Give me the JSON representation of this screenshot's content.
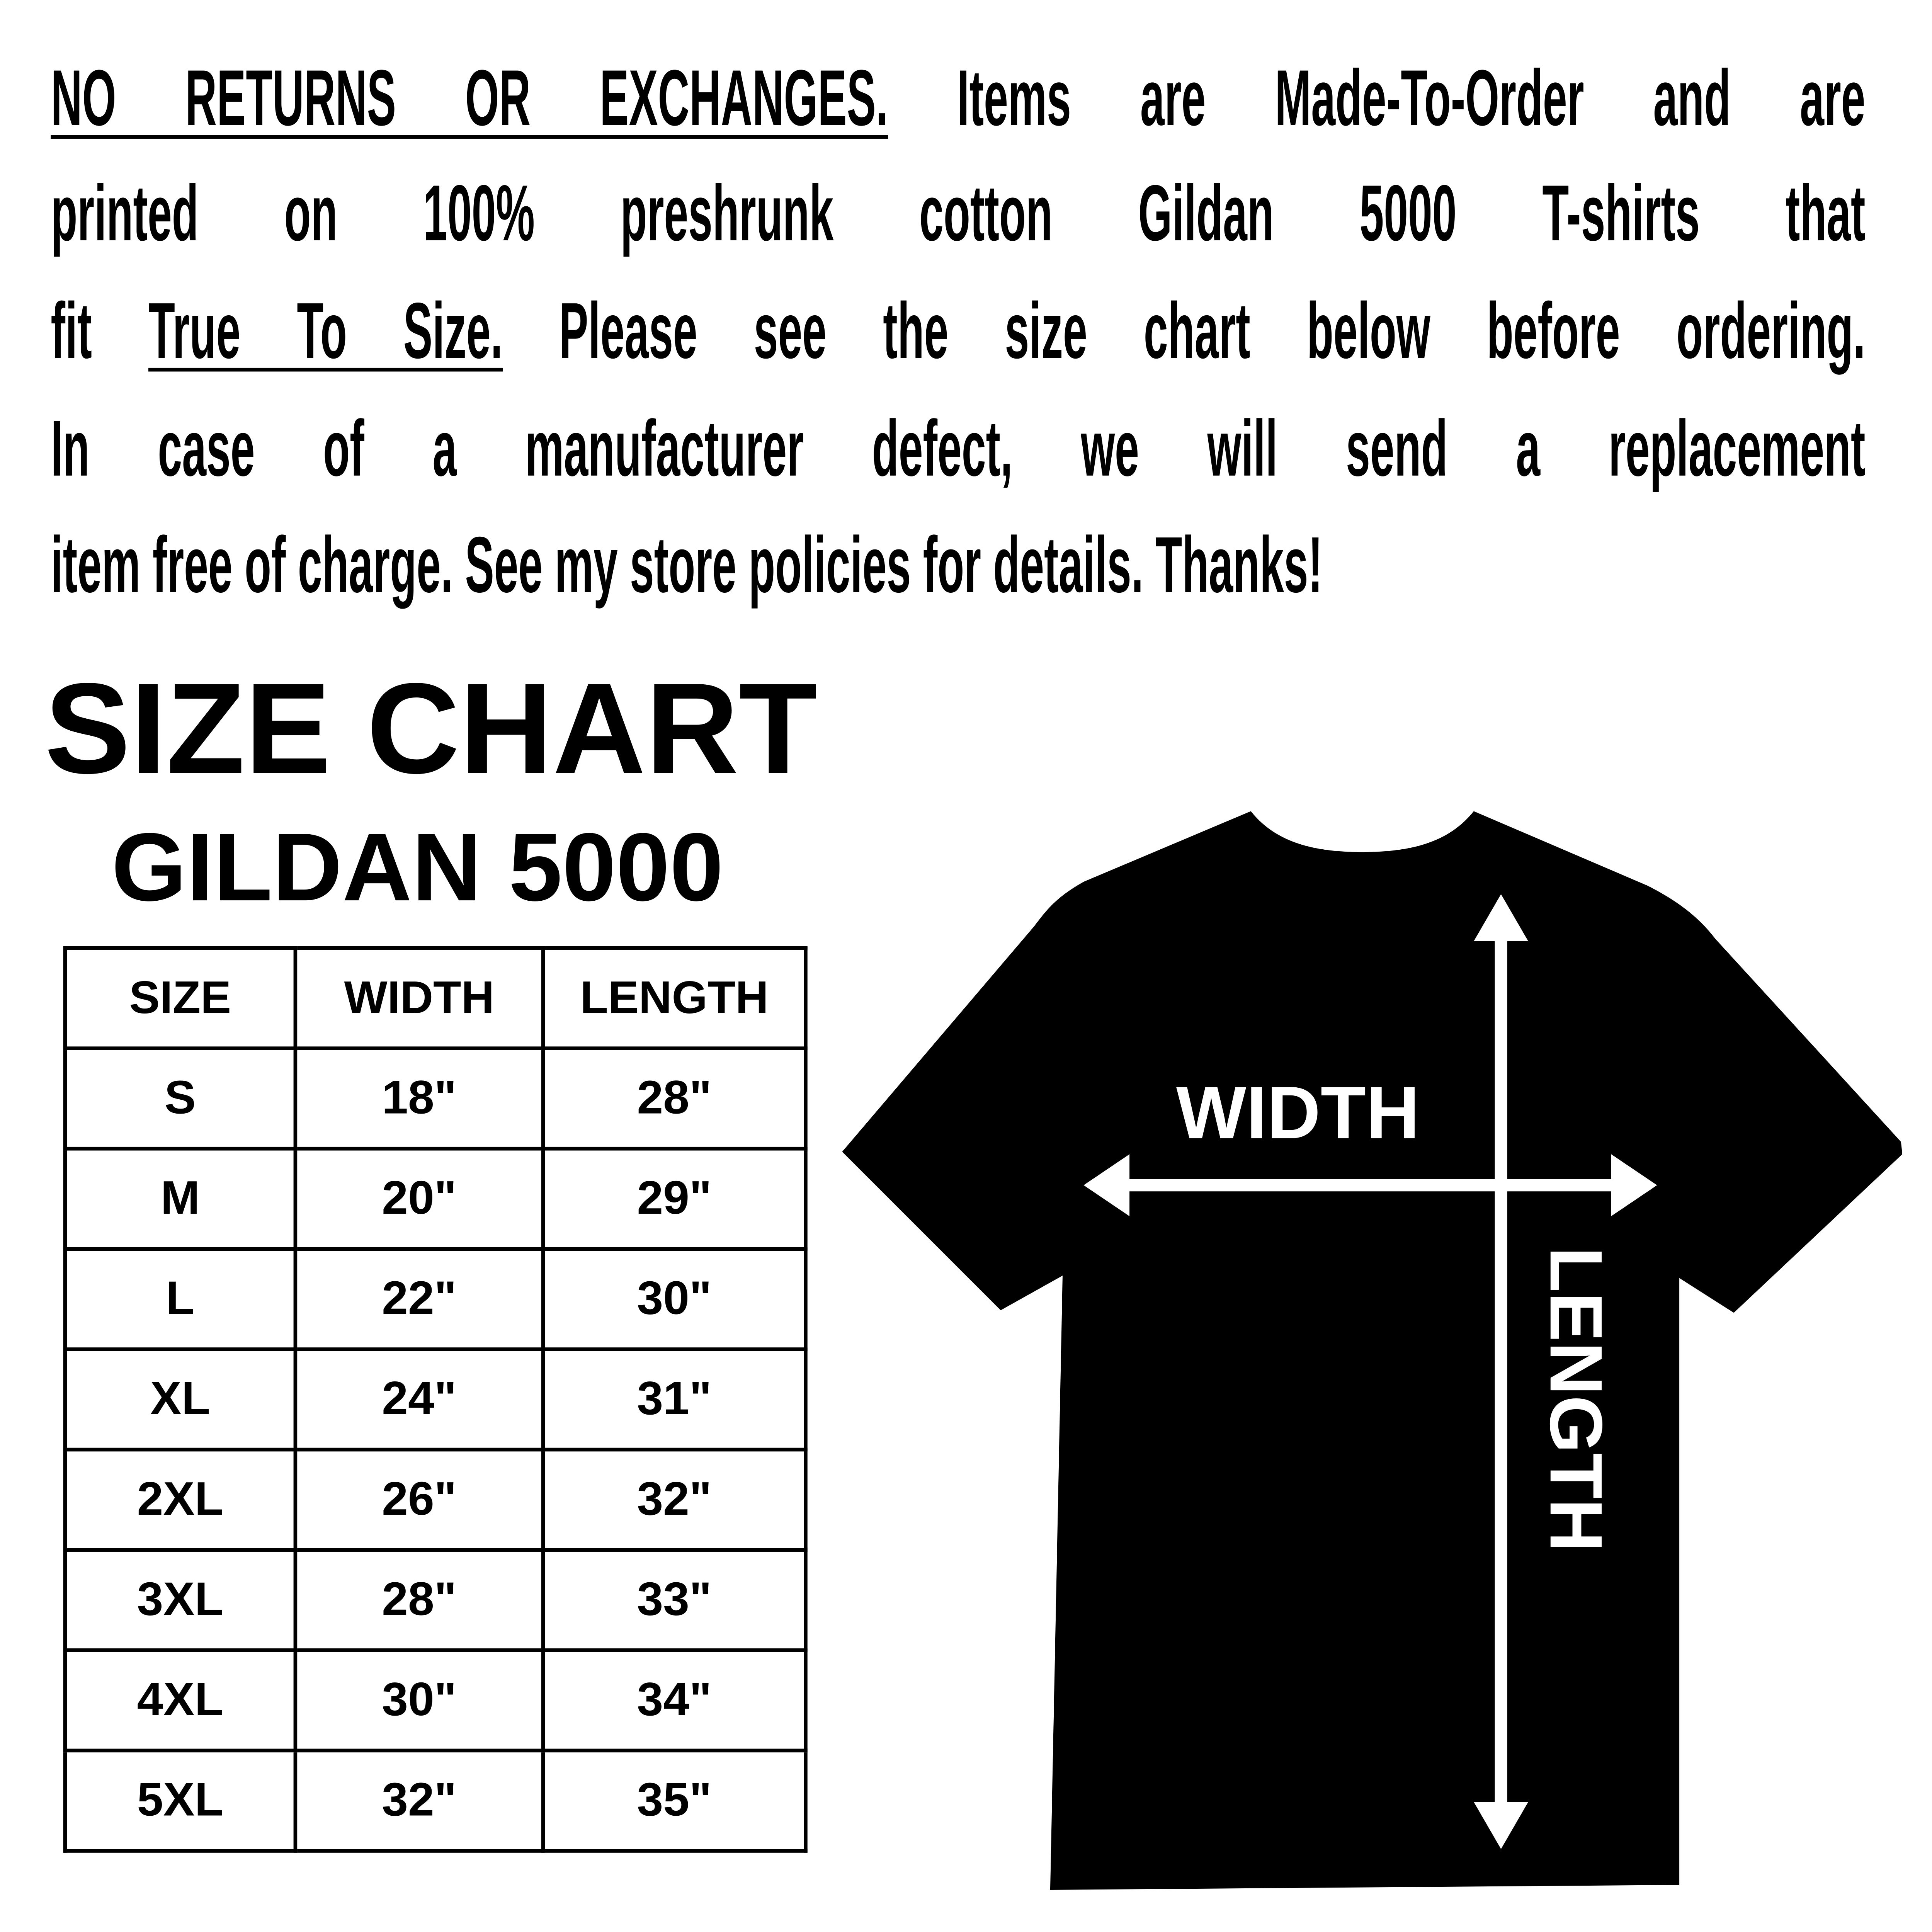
{
  "notice": {
    "line1_underlined": "NO RETURNS OR EXCHANGES.",
    "line1_rest": " Items are Made-To-Order and are",
    "line2": "printed on 100% preshrunk cotton Gildan 5000 T-shirts that",
    "line3_pre": "fit ",
    "line3_underlined": "True To Size.",
    "line3_rest": " Please see the size chart below before ordering.",
    "line4": "In case of a manufacturer defect, we will send a replacement",
    "line5": "item free of charge. See my store policies for details. Thanks!"
  },
  "title": "SIZE CHART",
  "subtitle": "GILDAN 5000",
  "table": {
    "headers": [
      "SIZE",
      "WIDTH",
      "LENGTH"
    ],
    "rows": [
      [
        "S",
        "18\"",
        "28\""
      ],
      [
        "M",
        "20\"",
        "29\""
      ],
      [
        "L",
        "22\"",
        "30\""
      ],
      [
        "XL",
        "24\"",
        "31\""
      ],
      [
        "2XL",
        "26\"",
        "32\""
      ],
      [
        "3XL",
        "28\"",
        "33\""
      ],
      [
        "4XL",
        "30\"",
        "34\""
      ],
      [
        "5XL",
        "32\"",
        "35\""
      ]
    ]
  },
  "diagram": {
    "width_label": "WIDTH",
    "length_label": "LENGTH",
    "shirt_color": "#000000",
    "arrow_color": "#ffffff"
  }
}
